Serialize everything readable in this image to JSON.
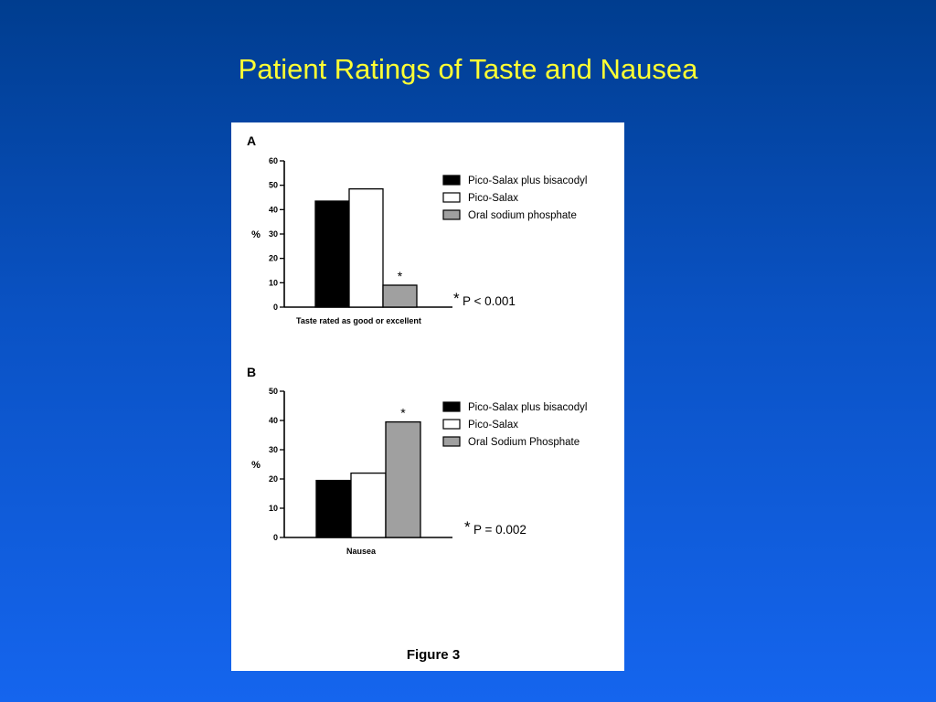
{
  "slide": {
    "title": "Patient Ratings of Taste and Nausea",
    "figure_caption": "Figure 3",
    "colors": {
      "background": "#0a52c4",
      "title": "#ffff33",
      "panel": "#ffffff"
    }
  },
  "chart_data": [
    {
      "type": "bar",
      "panel_label": "A",
      "title": "",
      "ylabel": "%",
      "xlabel": "Taste rated as good or excellent",
      "ylim": [
        0,
        60
      ],
      "yticks": [
        "0",
        "10",
        "20",
        "30",
        "40",
        "50",
        "60"
      ],
      "categories": [
        "Taste rated as good or excellent"
      ],
      "series": [
        {
          "name": "Pico-Salax plus bisacodyl",
          "values": [
            43.5
          ],
          "color": "#000000"
        },
        {
          "name": "Pico-Salax",
          "values": [
            48.5
          ],
          "color": "#ffffff"
        },
        {
          "name": "Oral sodium phosphate",
          "values": [
            9
          ],
          "color": "#a0a0a0"
        }
      ],
      "annotations": {
        "bar_marker": "*",
        "star": "*",
        "p_value": "P < 0.001"
      },
      "legend": "right",
      "grid": false
    },
    {
      "type": "bar",
      "panel_label": "B",
      "title": "",
      "ylabel": "%",
      "xlabel": "Nausea",
      "ylim": [
        0,
        50
      ],
      "yticks": [
        "0",
        "10",
        "20",
        "30",
        "40",
        "50"
      ],
      "categories": [
        "Nausea"
      ],
      "series": [
        {
          "name": "Pico-Salax plus bisacodyl",
          "values": [
            19.5
          ],
          "color": "#000000"
        },
        {
          "name": "Pico-Salax",
          "values": [
            22
          ],
          "color": "#ffffff"
        },
        {
          "name": "Oral Sodium Phosphate",
          "values": [
            39.5
          ],
          "color": "#a0a0a0"
        }
      ],
      "annotations": {
        "bar_marker": "*",
        "star": "*",
        "p_value": "P = 0.002"
      },
      "legend": "right",
      "grid": false
    }
  ]
}
